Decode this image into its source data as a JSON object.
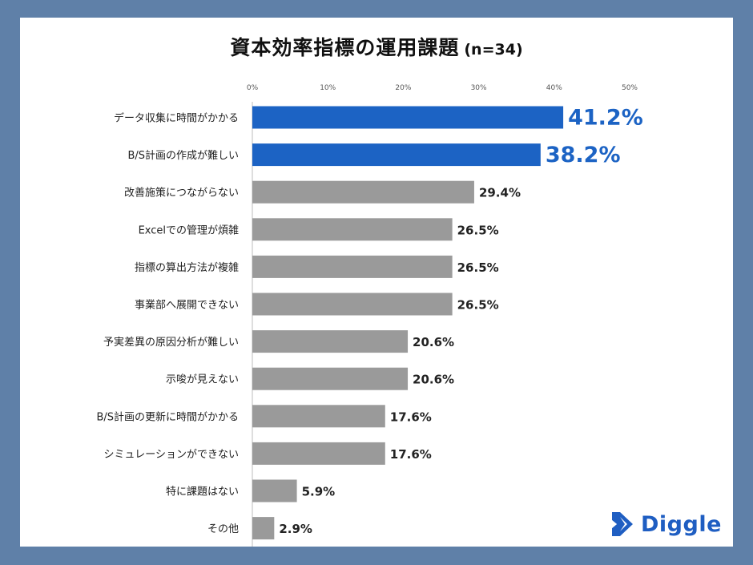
{
  "title": "資本効率指標の運用課題",
  "sample": "(n=34)",
  "brand": {
    "name": "Diggle",
    "color": "#1f5ec2",
    "icon": "diggle-logo-icon"
  },
  "colors": {
    "highlight": "#1c63c4",
    "default": "#9a9a9a",
    "background": "#5f80a8"
  },
  "chart_data": {
    "type": "bar",
    "orientation": "horizontal",
    "xlim": [
      0,
      50
    ],
    "ticks": [
      0,
      10,
      20,
      30,
      40,
      50
    ],
    "tick_labels": [
      "0%",
      "10%",
      "20%",
      "30%",
      "40%",
      "50%"
    ],
    "categories": [
      "データ収集に時間がかかる",
      "B/S計画の作成が難しい",
      "改善施策につながらない",
      "Excelでの管理が煩雑",
      "指標の算出方法が複雑",
      "事業部へ展開できない",
      "予実差異の原因分析が難しい",
      "示唆が見えない",
      "B/S計画の更新に時間がかかる",
      "シミュレーションができない",
      "特に課題はない",
      "その他"
    ],
    "values": [
      41.2,
      38.2,
      29.4,
      26.5,
      26.5,
      26.5,
      20.6,
      20.6,
      17.6,
      17.6,
      5.9,
      2.9
    ],
    "value_labels": [
      "41.2%",
      "38.2%",
      "29.4%",
      "26.5%",
      "26.5%",
      "26.5%",
      "20.6%",
      "20.6%",
      "17.6%",
      "17.6%",
      "5.9%",
      "2.9%"
    ],
    "highlighted": [
      true,
      true,
      false,
      false,
      false,
      false,
      false,
      false,
      false,
      false,
      false,
      false
    ],
    "grid": false,
    "legend": "none"
  }
}
